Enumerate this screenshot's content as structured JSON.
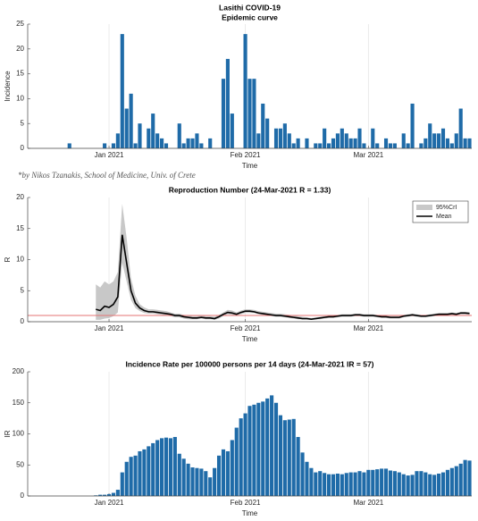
{
  "credit": "*by Nikos Tzanakis, School of Medicine, Univ. of Crete",
  "chart_data": [
    {
      "type": "bar",
      "title": "Lasithi COVID-19",
      "subtitle": "Epidemic curve",
      "x_label": "Time",
      "y_label": "Incidence",
      "categories": [
        null,
        null,
        null,
        null,
        null,
        null,
        null,
        null,
        null,
        null,
        null,
        null,
        null,
        null,
        null,
        null,
        null,
        null,
        "Jan 2021",
        null,
        null,
        null,
        null,
        null,
        null,
        null,
        null,
        null,
        null,
        null,
        null,
        null,
        null,
        null,
        null,
        null,
        null,
        null,
        null,
        null,
        null,
        null,
        null,
        null,
        null,
        null,
        null,
        null,
        null,
        "Feb 2021",
        null,
        null,
        null,
        null,
        null,
        null,
        null,
        null,
        null,
        null,
        null,
        null,
        null,
        null,
        null,
        null,
        null,
        null,
        null,
        null,
        null,
        null,
        null,
        null,
        null,
        null,
        null,
        "Mar 2021",
        null,
        null,
        null,
        null,
        null,
        null,
        null,
        null,
        null,
        null,
        null,
        null,
        null,
        null,
        null,
        null,
        null,
        null,
        null,
        null,
        null,
        null,
        null
      ],
      "values": [
        0,
        0,
        0,
        0,
        0,
        0,
        0,
        0,
        0,
        1,
        0,
        0,
        0,
        0,
        0,
        0,
        0,
        1,
        0,
        1,
        3,
        23,
        8,
        11,
        1,
        5,
        0,
        4,
        7,
        3,
        2,
        1,
        0,
        0,
        5,
        1,
        2,
        2,
        3,
        1,
        0,
        2,
        0,
        0,
        14,
        18,
        7,
        0,
        0,
        23,
        14,
        14,
        3,
        9,
        6,
        0,
        4,
        4,
        5,
        3,
        1,
        2,
        0,
        2,
        0,
        1,
        1,
        4,
        1,
        2,
        3,
        4,
        3,
        2,
        2,
        4,
        1,
        0,
        4,
        1,
        0,
        2,
        1,
        1,
        0,
        3,
        1,
        9,
        0,
        1,
        2,
        5,
        3,
        3,
        4,
        2,
        1,
        3,
        8,
        2,
        2
      ],
      "color": "#1f6ba8",
      "ylim": [
        0,
        25
      ],
      "yticks": [
        0,
        5,
        10,
        15,
        20,
        25
      ],
      "grid": "x"
    },
    {
      "type": "line",
      "title": "Reproduction Number (24-Mar-2021 R = 1.33)",
      "x_label": "Time",
      "y_label": "R",
      "categories": [
        null,
        null,
        null,
        null,
        null,
        null,
        null,
        null,
        null,
        null,
        null,
        null,
        null,
        null,
        null,
        null,
        null,
        null,
        "Jan 2021",
        null,
        null,
        null,
        null,
        null,
        null,
        null,
        null,
        null,
        null,
        null,
        null,
        null,
        null,
        null,
        null,
        null,
        null,
        null,
        null,
        null,
        null,
        null,
        null,
        null,
        null,
        null,
        null,
        null,
        null,
        "Feb 2021",
        null,
        null,
        null,
        null,
        null,
        null,
        null,
        null,
        null,
        null,
        null,
        null,
        null,
        null,
        null,
        null,
        null,
        null,
        null,
        null,
        null,
        null,
        null,
        null,
        null,
        null,
        null,
        "Mar 2021",
        null,
        null,
        null,
        null,
        null,
        null,
        null,
        null,
        null,
        null,
        null,
        null,
        null,
        null,
        null,
        null,
        null,
        null,
        null,
        null,
        null,
        null,
        null
      ],
      "series": [
        {
          "name": "95%CrI",
          "color": "#c8c8c8",
          "lower": [
            null,
            null,
            null,
            null,
            null,
            null,
            null,
            null,
            null,
            null,
            null,
            null,
            null,
            null,
            null,
            0.3,
            0.3,
            0.5,
            0.6,
            0.9,
            1.5,
            9.5,
            6.5,
            3.5,
            2.2,
            1.7,
            1.4,
            1.3,
            1.3,
            1.2,
            1.1,
            1.0,
            0.9,
            0.7,
            0.7,
            0.5,
            0.4,
            0.4,
            0.4,
            0.5,
            0.4,
            0.4,
            0.3,
            0.5,
            0.9,
            1.2,
            1.1,
            1.0,
            1.2,
            1.4,
            1.4,
            1.4,
            1.2,
            1.1,
            1.0,
            0.9,
            0.8,
            0.8,
            0.7,
            0.6,
            0.5,
            0.4,
            0.4,
            0.4,
            0.3,
            0.4,
            0.4,
            0.5,
            0.6,
            0.6,
            0.7,
            0.8,
            0.8,
            0.8,
            0.9,
            0.9,
            0.8,
            0.8,
            0.8,
            0.7,
            0.6,
            0.6,
            0.5,
            0.5,
            0.5,
            0.7,
            0.8,
            0.9,
            0.8,
            0.7,
            0.7,
            0.8,
            0.9,
            1.0,
            1.0,
            1.0,
            1.1,
            1.0,
            1.2,
            1.2,
            1.1
          ],
          "upper": [
            null,
            null,
            null,
            null,
            null,
            null,
            null,
            null,
            null,
            null,
            null,
            null,
            null,
            null,
            null,
            6.0,
            5.5,
            6.5,
            6.0,
            6.5,
            8.0,
            19.0,
            13.5,
            7.0,
            4.2,
            2.8,
            2.3,
            2.0,
            2.0,
            1.9,
            1.8,
            1.7,
            1.5,
            1.3,
            1.3,
            1.1,
            1.0,
            0.9,
            0.9,
            1.0,
            0.9,
            0.9,
            0.8,
            1.1,
            1.5,
            1.9,
            1.8,
            1.5,
            1.8,
            2.0,
            2.0,
            1.9,
            1.7,
            1.6,
            1.5,
            1.4,
            1.3,
            1.3,
            1.2,
            1.1,
            1.0,
            0.9,
            0.8,
            0.7,
            0.6,
            0.7,
            0.8,
            0.9,
            1.0,
            1.0,
            1.1,
            1.2,
            1.2,
            1.2,
            1.3,
            1.3,
            1.2,
            1.2,
            1.2,
            1.1,
            1.0,
            1.0,
            0.9,
            0.9,
            0.9,
            1.1,
            1.2,
            1.3,
            1.2,
            1.1,
            1.1,
            1.2,
            1.3,
            1.4,
            1.4,
            1.4,
            1.5,
            1.4,
            1.6,
            1.6,
            1.55
          ]
        },
        {
          "name": "Mean",
          "color": "#000000",
          "values": [
            null,
            null,
            null,
            null,
            null,
            null,
            null,
            null,
            null,
            null,
            null,
            null,
            null,
            null,
            null,
            2.0,
            1.8,
            2.5,
            2.3,
            2.8,
            4.0,
            14.0,
            9.5,
            5.0,
            3.0,
            2.2,
            1.8,
            1.6,
            1.6,
            1.5,
            1.4,
            1.3,
            1.2,
            1.0,
            1.0,
            0.8,
            0.7,
            0.6,
            0.6,
            0.7,
            0.6,
            0.6,
            0.5,
            0.8,
            1.2,
            1.5,
            1.4,
            1.2,
            1.5,
            1.7,
            1.7,
            1.6,
            1.4,
            1.3,
            1.2,
            1.1,
            1.0,
            1.0,
            0.9,
            0.8,
            0.7,
            0.6,
            0.5,
            0.5,
            0.4,
            0.5,
            0.6,
            0.7,
            0.8,
            0.8,
            0.9,
            1.0,
            1.0,
            1.0,
            1.1,
            1.1,
            1.0,
            1.0,
            1.0,
            0.9,
            0.8,
            0.8,
            0.7,
            0.7,
            0.7,
            0.9,
            1.0,
            1.1,
            1.0,
            0.9,
            0.9,
            1.0,
            1.1,
            1.2,
            1.2,
            1.2,
            1.3,
            1.2,
            1.4,
            1.4,
            1.33
          ]
        }
      ],
      "reference_line": 1,
      "reference_color": "#e57373",
      "ylim": [
        0,
        20
      ],
      "yticks": [
        0,
        5,
        10,
        15,
        20
      ],
      "grid": "x",
      "legend": "northeast"
    },
    {
      "type": "bar",
      "title": "Incidence Rate per 100000 persons per 14 days (24-Mar-2021 IR = 57)",
      "x_label": "Time",
      "y_label": "IR",
      "categories": [
        null,
        null,
        null,
        null,
        null,
        null,
        null,
        null,
        null,
        null,
        null,
        null,
        null,
        null,
        null,
        null,
        null,
        null,
        "Jan 2021",
        null,
        null,
        null,
        null,
        null,
        null,
        null,
        null,
        null,
        null,
        null,
        null,
        null,
        null,
        null,
        null,
        null,
        null,
        null,
        null,
        null,
        null,
        null,
        null,
        null,
        null,
        null,
        null,
        null,
        null,
        "Feb 2021",
        null,
        null,
        null,
        null,
        null,
        null,
        null,
        null,
        null,
        null,
        null,
        null,
        null,
        null,
        null,
        null,
        null,
        null,
        null,
        null,
        null,
        null,
        null,
        null,
        null,
        null,
        null,
        "Mar 2021",
        null,
        null,
        null,
        null,
        null,
        null,
        null,
        null,
        null,
        null,
        null,
        null,
        null,
        null,
        null,
        null,
        null,
        null,
        null,
        null,
        null,
        null,
        null
      ],
      "values": [
        0,
        0,
        0,
        0,
        0,
        0,
        0,
        0,
        0,
        0,
        0,
        0,
        0,
        0,
        0,
        1,
        2,
        2,
        3,
        5,
        10,
        38,
        55,
        63,
        65,
        72,
        75,
        80,
        85,
        90,
        93,
        94,
        93,
        95,
        68,
        60,
        52,
        46,
        45,
        44,
        40,
        30,
        45,
        65,
        75,
        72,
        90,
        110,
        125,
        133,
        145,
        147,
        150,
        152,
        157,
        162,
        150,
        130,
        122,
        123,
        124,
        95,
        70,
        55,
        45,
        38,
        40,
        37,
        35,
        35,
        36,
        35,
        37,
        38,
        38,
        40,
        38,
        42,
        42,
        43,
        44,
        44,
        41,
        40,
        38,
        35,
        33,
        34,
        40,
        40,
        38,
        35,
        34,
        36,
        38,
        42,
        45,
        48,
        52,
        58,
        57
      ],
      "color": "#1f6ba8",
      "ylim": [
        0,
        200
      ],
      "yticks": [
        0,
        50,
        100,
        150,
        200
      ],
      "grid": "x"
    }
  ]
}
